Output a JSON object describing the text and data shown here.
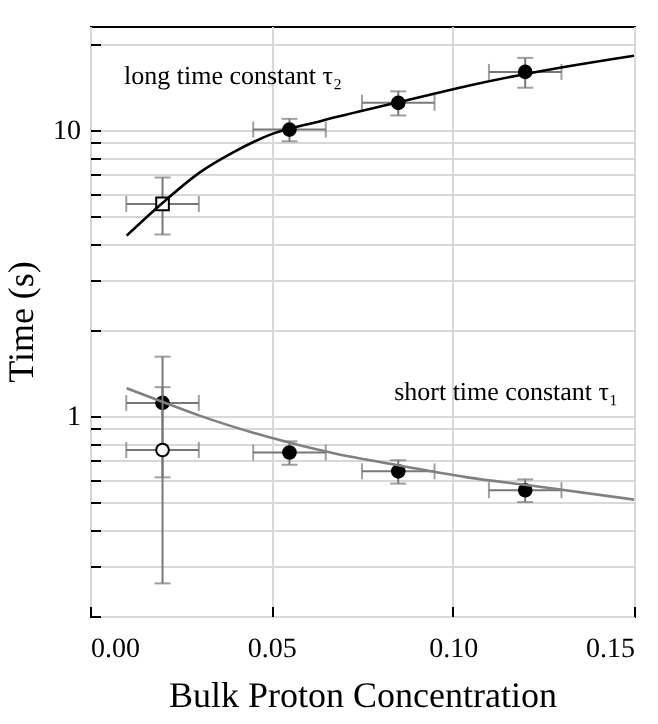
{
  "chart_data": {
    "type": "scatter",
    "xlabel": "Bulk Proton Concentration",
    "ylabel": "Time (s)",
    "log": "y",
    "grid": true,
    "xlim": [
      0,
      0.15
    ],
    "xticks": [
      {
        "value": 0,
        "label": "0.00"
      },
      {
        "value": 0.05,
        "label": "0.05"
      },
      {
        "value": 0.1,
        "label": "0.10"
      },
      {
        "value": 0.15,
        "label": "0.15"
      }
    ],
    "ylim": [
      0.2,
      23
    ],
    "yticks": [
      {
        "value": 0.2,
        "label": null
      },
      {
        "value": 0.3,
        "label": null
      },
      {
        "value": 0.4,
        "label": null
      },
      {
        "value": 0.5,
        "label": null
      },
      {
        "value": 0.6,
        "label": null
      },
      {
        "value": 0.7,
        "label": null
      },
      {
        "value": 0.8,
        "label": null
      },
      {
        "value": 0.9,
        "label": null
      },
      1,
      {
        "value": 2,
        "label": null
      },
      {
        "value": 3,
        "label": null
      },
      {
        "value": 4,
        "label": null
      },
      {
        "value": 5,
        "label": null
      },
      {
        "value": 6,
        "label": null
      },
      {
        "value": 7,
        "label": null
      },
      {
        "value": 8,
        "label": null
      },
      {
        "value": 9,
        "label": null
      },
      10,
      {
        "value": 20,
        "label": null
      }
    ],
    "annotations": [
      "long time constant τ₂",
      "short time constant τ₁"
    ],
    "series": [
      {
        "marker": "circle",
        "color": "#000000",
        "x": [
          0.055,
          0.085,
          0.12
        ],
        "values": [
          10,
          12.4,
          15.9
        ],
        "errors": [
          0.9,
          1.2,
          1.9
        ],
        "xerrors": [
          0.01,
          0.01,
          0.01
        ]
      },
      {
        "marker": "square",
        "color": "#ffffff",
        "x": [
          0.02
        ],
        "values": [
          5.5
        ],
        "errors": [
          [
            4.3,
            6.8
          ]
        ],
        "xerrors": [
          0.01
        ]
      },
      {
        "marker": "circle",
        "color": "#000000",
        "x": [
          0.02,
          0.055,
          0.085,
          0.12
        ],
        "values": [
          1.11,
          0.745,
          0.64,
          0.55
        ],
        "errors": [
          0.5,
          0.07,
          0.06,
          0.05
        ],
        "xerrors": [
          0.01,
          0.01,
          0.01,
          0.01
        ]
      },
      {
        "marker": "circle",
        "color": "#ffffff",
        "x": [
          0.02
        ],
        "values": [
          0.76
        ],
        "errors": [
          0.5
        ],
        "xerrors": [
          0.01
        ]
      },
      {
        "type": "line",
        "color": "#000000",
        "x": [
          0.0101,
          0.0199,
          0.0304,
          0.0396,
          0.0497,
          0.0635,
          0.0856,
          0.104,
          0.122,
          0.15
        ],
        "values": [
          4.26,
          5.53,
          7.1,
          8.34,
          9.6,
          10.7,
          12.5,
          14.2,
          15.8,
          18.1
        ]
      },
      {
        "type": "line",
        "color": "#808080",
        "x": [
          0.0101,
          0.0199,
          0.0304,
          0.0497,
          0.0672,
          0.0856,
          0.104,
          0.122,
          0.15
        ],
        "values": [
          1.25,
          1.12,
          1.0,
          0.84,
          0.74,
          0.67,
          0.61,
          0.57,
          0.51
        ]
      }
    ]
  }
}
